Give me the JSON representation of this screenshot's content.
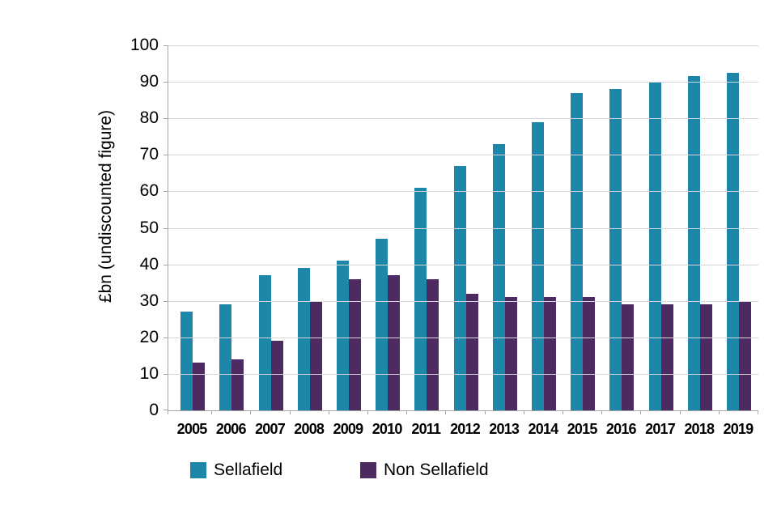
{
  "colors": {
    "sellafield": "#1e86a8",
    "non_sellafield": "#4e2a63",
    "gridline": "#d6d6d6",
    "axis": "#a6a6a6",
    "text": "#000000",
    "background": "#ffffff"
  },
  "chart_data": {
    "type": "bar",
    "title": "",
    "xlabel": "",
    "ylabel": "£bn (undiscounted figure)",
    "ylim": [
      0,
      100
    ],
    "yticks": [
      0,
      10,
      20,
      30,
      40,
      50,
      60,
      70,
      80,
      90,
      100
    ],
    "grid": "horizontal",
    "legend_position": "bottom",
    "categories": [
      "2005",
      "2006",
      "2007",
      "2008",
      "2009",
      "2010",
      "2011",
      "2012",
      "2013",
      "2014",
      "2015",
      "2016",
      "2017",
      "2018",
      "2019"
    ],
    "series": [
      {
        "name": "Sellafield",
        "color": "#1e86a8",
        "values": [
          27,
          29,
          37,
          39,
          41,
          47,
          61,
          67,
          73,
          79,
          87,
          88,
          90,
          91.5,
          92.5
        ]
      },
      {
        "name": "Non Sellafield",
        "color": "#4e2a63",
        "values": [
          13,
          14,
          19,
          30,
          36,
          37,
          36,
          32,
          31,
          31,
          31,
          29,
          29,
          29,
          30
        ]
      }
    ]
  }
}
